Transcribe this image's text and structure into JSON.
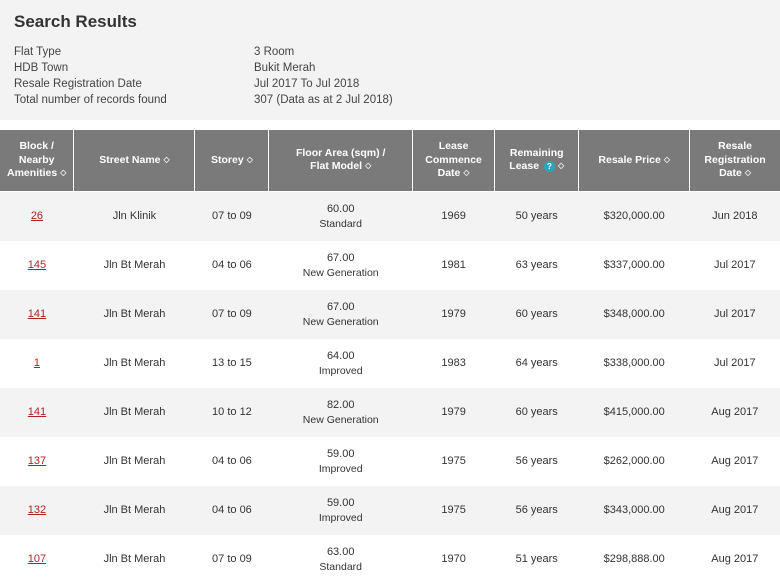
{
  "title": "Search Results",
  "meta": [
    {
      "label": "Flat Type",
      "value": "3 Room"
    },
    {
      "label": "HDB Town",
      "value": "Bukit Merah"
    },
    {
      "label": "Resale Registration Date",
      "value": "Jul 2017 To Jul 2018"
    },
    {
      "label": "Total number of records found",
      "value": "307 (Data as at 2 Jul 2018)"
    }
  ],
  "columns": [
    {
      "key": "block",
      "label": "Block / Nearby Amenities",
      "sortable": true,
      "help": false
    },
    {
      "key": "street",
      "label": "Street Name",
      "sortable": true,
      "help": false
    },
    {
      "key": "storey",
      "label": "Storey",
      "sortable": true,
      "help": false
    },
    {
      "key": "floor",
      "label": "Floor Area (sqm) / Flat Model",
      "sortable": true,
      "help": false
    },
    {
      "key": "lcd",
      "label": "Lease Commence Date",
      "sortable": true,
      "help": false
    },
    {
      "key": "rl",
      "label": "Remaining Lease",
      "sortable": true,
      "help": true
    },
    {
      "key": "price",
      "label": "Resale Price",
      "sortable": true,
      "help": false
    },
    {
      "key": "rrd",
      "label": "Resale Registration Date",
      "sortable": true,
      "help": false
    }
  ],
  "rows": [
    {
      "block": "26",
      "street": "Jln Klinik",
      "storey": "07 to 09",
      "area": "60.00",
      "model": "Standard",
      "lcd": "1969",
      "rl": "50 years",
      "price": "$320,000.00",
      "rrd": "Jun 2018"
    },
    {
      "block": "145",
      "street": "Jln Bt Merah",
      "storey": "04 to 06",
      "area": "67.00",
      "model": "New Generation",
      "lcd": "1981",
      "rl": "63 years",
      "price": "$337,000.00",
      "rrd": "Jul 2017"
    },
    {
      "block": "141",
      "street": "Jln Bt Merah",
      "storey": "07 to 09",
      "area": "67.00",
      "model": "New Generation",
      "lcd": "1979",
      "rl": "60 years",
      "price": "$348,000.00",
      "rrd": "Jul 2017"
    },
    {
      "block": "1",
      "street": "Jln Bt Merah",
      "storey": "13 to 15",
      "area": "64.00",
      "model": "Improved",
      "lcd": "1983",
      "rl": "64 years",
      "price": "$338,000.00",
      "rrd": "Jul 2017"
    },
    {
      "block": "141",
      "street": "Jln Bt Merah",
      "storey": "10 to 12",
      "area": "82.00",
      "model": "New Generation",
      "lcd": "1979",
      "rl": "60 years",
      "price": "$415,000.00",
      "rrd": "Aug 2017"
    },
    {
      "block": "137",
      "street": "Jln Bt Merah",
      "storey": "04 to 06",
      "area": "59.00",
      "model": "Improved",
      "lcd": "1975",
      "rl": "56 years",
      "price": "$262,000.00",
      "rrd": "Aug 2017"
    },
    {
      "block": "132",
      "street": "Jln Bt Merah",
      "storey": "04 to 06",
      "area": "59.00",
      "model": "Improved",
      "lcd": "1975",
      "rl": "56 years",
      "price": "$343,000.00",
      "rrd": "Aug 2017"
    },
    {
      "block": "107",
      "street": "Jln Bt Merah",
      "storey": "07 to 09",
      "area": "63.00",
      "model": "Standard",
      "lcd": "1970",
      "rl": "51 years",
      "price": "$298,888.00",
      "rrd": "Aug 2017"
    }
  ],
  "colors": {
    "header_bg": "#f3f3f3",
    "th_bg": "#7a7a7a",
    "th_text": "#ffffff",
    "row_even": "#f3f3f3",
    "row_odd": "#ffffff",
    "link": "#b02121",
    "help_bg": "#27a8b8"
  }
}
